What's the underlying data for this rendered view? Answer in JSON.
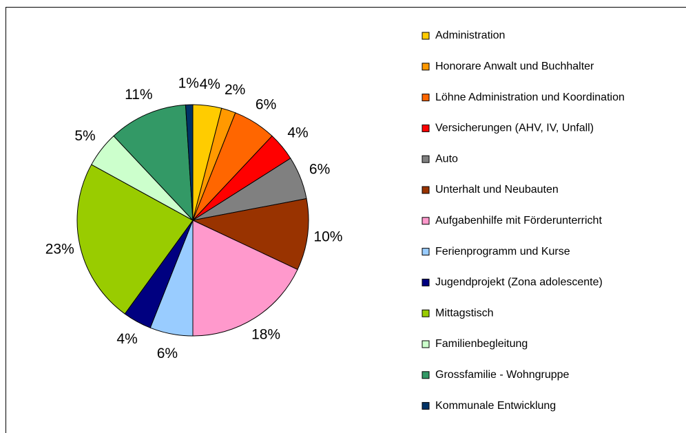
{
  "chart_data": {
    "type": "pie",
    "categories": [
      "Administration",
      "Honorare Anwalt und Buchhalter",
      "Löhne Administration und Koordination",
      "Versicherungen (AHV, IV, Unfall)",
      "Auto",
      "Unterhalt und Neubauten",
      "Aufgabenhilfe mit Förderunterricht",
      "Ferienprogramm und Kurse",
      "Jugendprojekt (Zona adolescente)",
      "Mittagstisch",
      "Familienbegleitung",
      "Grossfamilie - Wohngruppe",
      "Kommunale Entwicklung"
    ],
    "values": [
      4,
      2,
      6,
      4,
      6,
      10,
      18,
      6,
      4,
      23,
      5,
      11,
      1
    ],
    "value_labels": [
      "4%",
      "2%",
      "6%",
      "4%",
      "6%",
      "10%",
      "18%",
      "6%",
      "4%",
      "23%",
      "5%",
      "11%",
      "1%"
    ],
    "colors": [
      "#ffcc00",
      "#ff9900",
      "#ff6600",
      "#ff0000",
      "#808080",
      "#993300",
      "#ff99cc",
      "#99ccff",
      "#000080",
      "#99cc00",
      "#ccffcc",
      "#339966",
      "#003366"
    ],
    "legend": "right"
  }
}
